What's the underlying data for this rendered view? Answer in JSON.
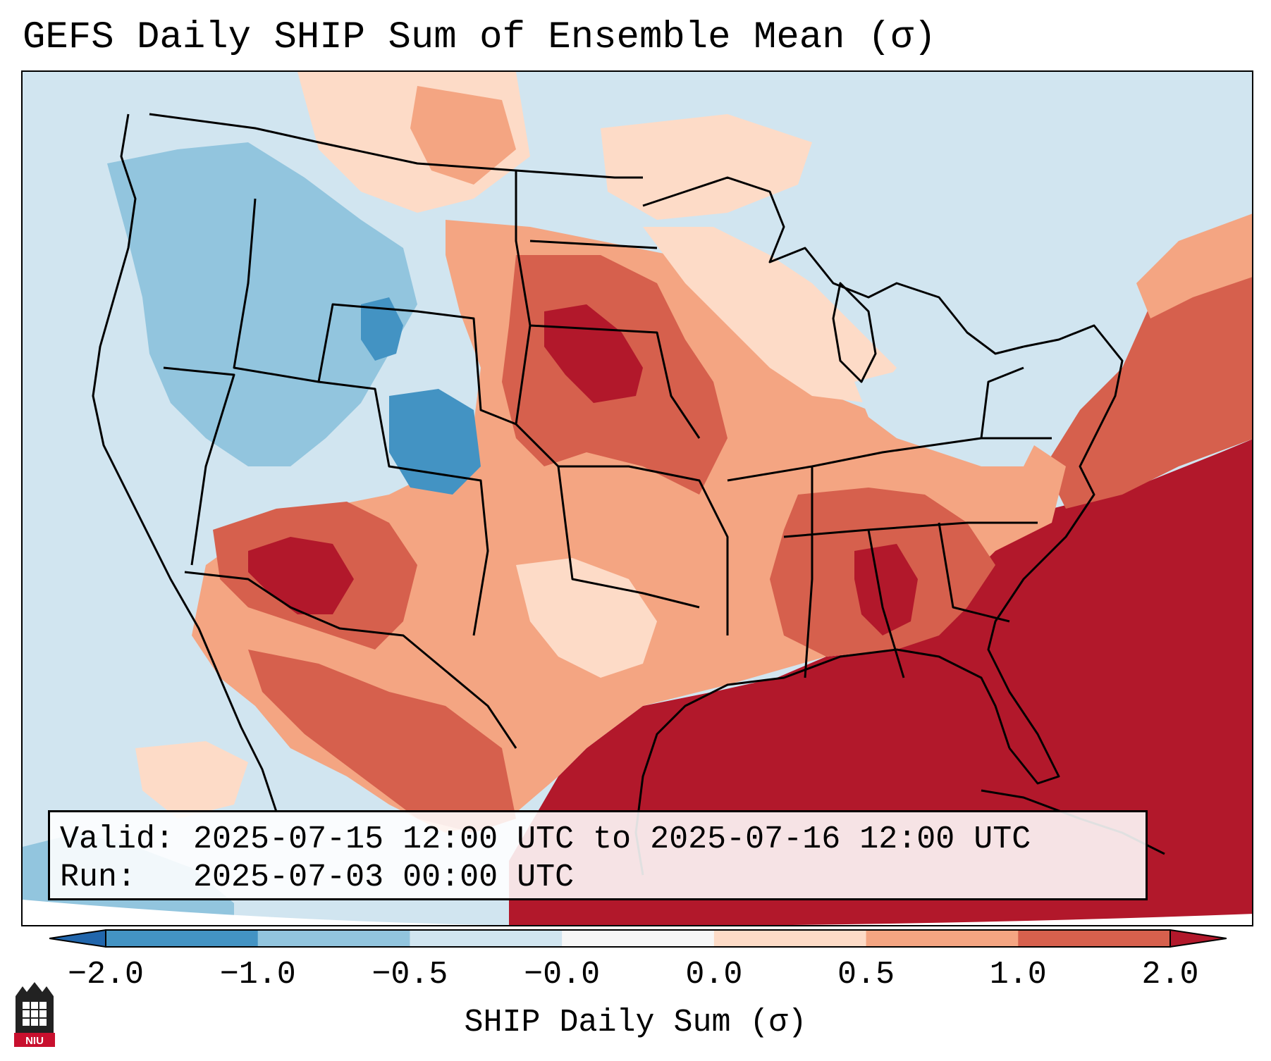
{
  "title": "GEFS Daily SHIP Sum of Ensemble Mean (σ)",
  "info": {
    "valid_label": "Valid:",
    "valid_value": "2025-07-15 12:00 UTC to 2025-07-16 12:00 UTC",
    "run_label": "Run:",
    "run_value": "2025-07-03 00:00 UTC"
  },
  "colorbar": {
    "label": "SHIP Daily Sum (σ)",
    "ticks": [
      "−2.0",
      "−1.0",
      "−0.5",
      "−0.0",
      "0.0",
      "0.5",
      "1.0",
      "2.0"
    ],
    "bins": [
      {
        "from": -2.0,
        "to": -1.0,
        "color": "#4393c3"
      },
      {
        "from": -1.0,
        "to": -0.5,
        "color": "#92c5de"
      },
      {
        "from": -0.5,
        "to": -0.0,
        "color": "#d1e5f0"
      },
      {
        "from": 0.0,
        "to": 0.0,
        "color": "#f7f7f7"
      },
      {
        "from": 0.0,
        "to": 0.5,
        "color": "#fddbc7"
      },
      {
        "from": 0.5,
        "to": 1.0,
        "color": "#f4a582"
      },
      {
        "from": 1.0,
        "to": 2.0,
        "color": "#d6604d"
      }
    ],
    "under_color": "#2166ac",
    "over_color": "#b2182b"
  },
  "logo_text": "NIU",
  "colors": {
    "ocean_extreme": "#b2182b",
    "land_high": "#d6604d",
    "land_mid": "#f4a582",
    "land_low": "#fddbc7",
    "neg_low": "#d1e5f0",
    "neg_mid": "#92c5de",
    "neg_high": "#4393c3",
    "logo_red": "#c8102e"
  }
}
